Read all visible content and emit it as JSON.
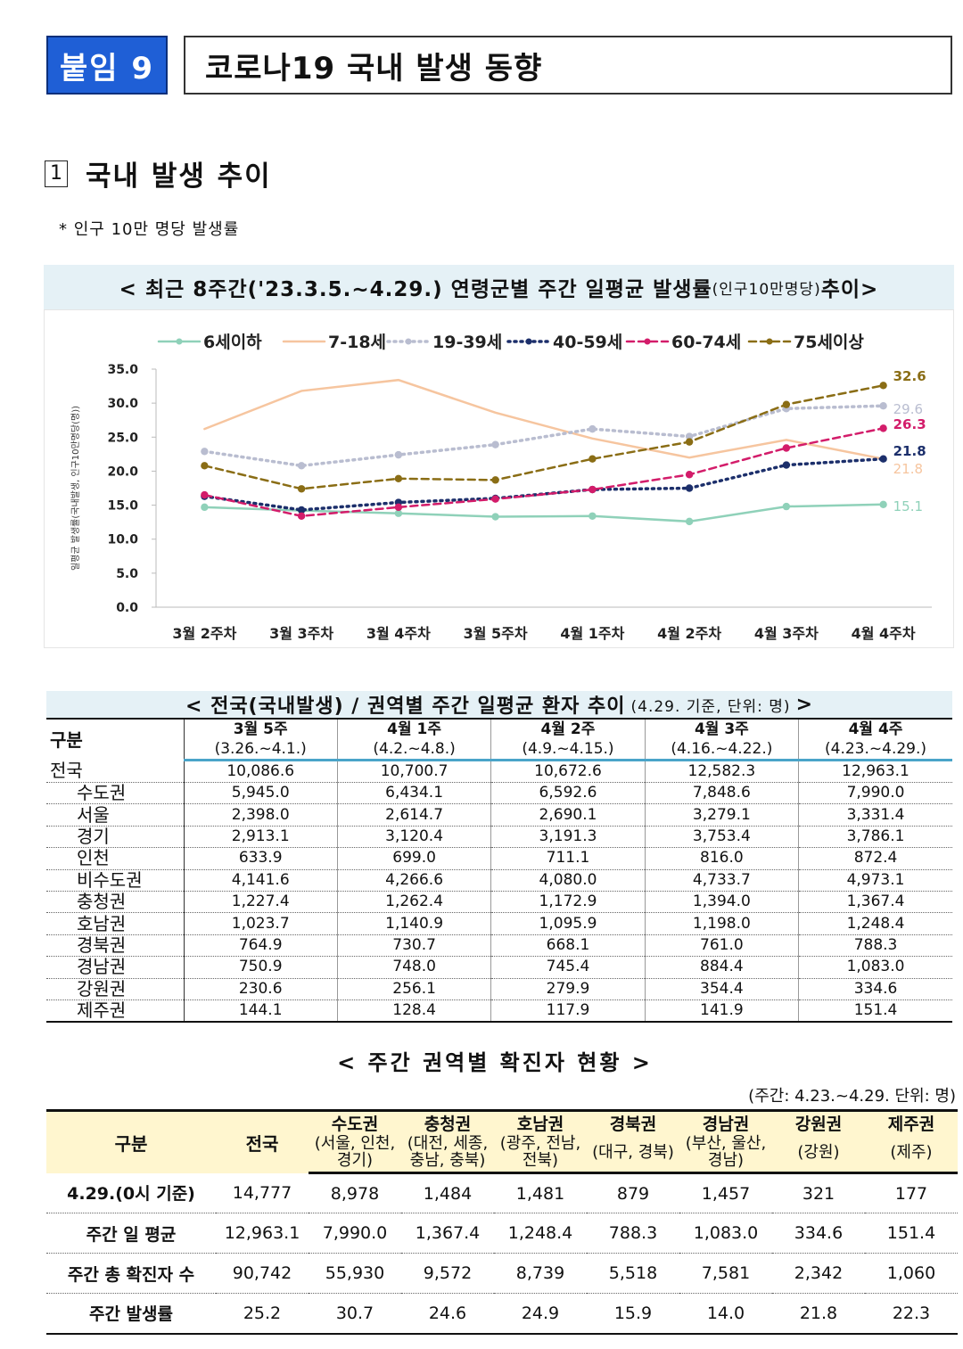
{
  "header": {
    "badge": "붙임 9",
    "title": "코로나19 국내 발생 동향"
  },
  "section": {
    "number": "1",
    "title": "국내 발생 추이",
    "note": "* 인구 10만 명당 발생률"
  },
  "chart_banner": {
    "main": "< 최근 8주간('23.3.5.~4.29.) 연령군별 주간 일평균 발생률",
    "small": "(인구10만명당)",
    "end": " 추이>"
  },
  "chart_data": {
    "type": "line",
    "title": "< 최근 8주간('23.3.5.~4.29.) 연령군별 주간 일평균 발생률(인구10만명당) 추이>",
    "ylabel": "일평균 발생률(국내발생, 인구10만명당(명))",
    "xlabel": "",
    "ylim": [
      0,
      35
    ],
    "y_ticks": [
      "0.0",
      "5.0",
      "10.0",
      "15.0",
      "20.0",
      "25.0",
      "30.0",
      "35.0"
    ],
    "categories": [
      "3월 2주차",
      "3월 3주차",
      "3월 4주차",
      "3월 5주차",
      "4월 1주차",
      "4월 2주차",
      "4월 3주차",
      "4월 4주차"
    ],
    "legend_position": "top",
    "series": [
      {
        "name": "6세이하",
        "color": "#8fd1b9",
        "style": "solid",
        "marker": "circle",
        "values": [
          14.7,
          14.2,
          13.8,
          13.3,
          13.4,
          12.6,
          14.8,
          15.1
        ],
        "end_label": "15.1"
      },
      {
        "name": "7-18세",
        "color": "#f6c59f",
        "style": "solid",
        "marker": "none",
        "values": [
          26.2,
          31.8,
          33.4,
          28.6,
          24.8,
          22.0,
          24.6,
          21.8
        ],
        "end_label": "21.8"
      },
      {
        "name": "19-39세",
        "color": "#b9bdd0",
        "style": "dotted",
        "marker": "circle",
        "values": [
          22.9,
          20.8,
          22.4,
          23.9,
          26.2,
          25.1,
          29.2,
          29.6
        ],
        "end_label": "29.6"
      },
      {
        "name": "40-59세",
        "color": "#1c2f6b",
        "style": "dotted",
        "marker": "circle",
        "values": [
          16.3,
          14.3,
          15.4,
          16.0,
          17.3,
          17.5,
          20.9,
          21.8
        ],
        "end_label": "21.8"
      },
      {
        "name": "60-74세",
        "color": "#d31c6a",
        "style": "dashed",
        "marker": "circle",
        "values": [
          16.5,
          13.4,
          14.7,
          15.9,
          17.3,
          19.5,
          23.4,
          26.3
        ],
        "end_label": "26.3"
      },
      {
        "name": "75세이상",
        "color": "#8a6d15",
        "style": "dashed",
        "marker": "circle",
        "values": [
          20.8,
          17.4,
          18.9,
          18.7,
          21.8,
          24.3,
          29.8,
          32.6
        ],
        "end_label": "32.6"
      }
    ]
  },
  "table1": {
    "title": "< 전국(국내발생) / 권역별 주간 일평균 환자 추이",
    "note": "(4.29. 기준, 단위: 명)",
    "title_end": ">",
    "corner": "구분",
    "periods": [
      {
        "week": "3월 5주",
        "range": "(3.26.~4.1.)"
      },
      {
        "week": "4월 1주",
        "range": "(4.2.~4.8.)"
      },
      {
        "week": "4월 2주",
        "range": "(4.9.~4.15.)"
      },
      {
        "week": "4월 3주",
        "range": "(4.16.~4.22.)"
      },
      {
        "week": "4월 4주",
        "range": "(4.23.~4.29.)"
      }
    ],
    "rows": [
      {
        "name": "전국",
        "indent": false,
        "values": [
          "10,086.6",
          "10,700.7",
          "10,672.6",
          "12,582.3",
          "12,963.1"
        ]
      },
      {
        "name": "수도권",
        "indent": true,
        "values": [
          "5,945.0",
          "6,434.1",
          "6,592.6",
          "7,848.6",
          "7,990.0"
        ]
      },
      {
        "name": "서울",
        "indent": true,
        "values": [
          "2,398.0",
          "2,614.7",
          "2,690.1",
          "3,279.1",
          "3,331.4"
        ]
      },
      {
        "name": "경기",
        "indent": true,
        "values": [
          "2,913.1",
          "3,120.4",
          "3,191.3",
          "3,753.4",
          "3,786.1"
        ]
      },
      {
        "name": "인천",
        "indent": true,
        "values": [
          "633.9",
          "699.0",
          "711.1",
          "816.0",
          "872.4"
        ]
      },
      {
        "name": "비수도권",
        "indent": true,
        "values": [
          "4,141.6",
          "4,266.6",
          "4,080.0",
          "4,733.7",
          "4,973.1"
        ]
      },
      {
        "name": "충청권",
        "indent": true,
        "values": [
          "1,227.4",
          "1,262.4",
          "1,172.9",
          "1,394.0",
          "1,367.4"
        ]
      },
      {
        "name": "호남권",
        "indent": true,
        "values": [
          "1,023.7",
          "1,140.9",
          "1,095.9",
          "1,198.0",
          "1,248.4"
        ]
      },
      {
        "name": "경북권",
        "indent": true,
        "values": [
          "764.9",
          "730.7",
          "668.1",
          "761.0",
          "788.3"
        ]
      },
      {
        "name": "경남권",
        "indent": true,
        "values": [
          "750.9",
          "748.0",
          "745.4",
          "884.4",
          "1,083.0"
        ]
      },
      {
        "name": "강원권",
        "indent": true,
        "values": [
          "230.6",
          "256.1",
          "279.9",
          "354.4",
          "334.6"
        ]
      },
      {
        "name": "제주권",
        "indent": true,
        "values": [
          "144.1",
          "128.4",
          "117.9",
          "141.9",
          "151.4"
        ]
      }
    ]
  },
  "table2": {
    "title": "< 주간 권역별 확진자 현황 >",
    "unit": "(주간: 4.23.~4.29. 단위: 명)",
    "corner": "구분",
    "national": "전국",
    "areas": [
      {
        "name": "수도권",
        "sub": "(서울, 인천, 경기)"
      },
      {
        "name": "충청권",
        "sub": "(대전, 세종, 충남, 충북)"
      },
      {
        "name": "호남권",
        "sub": "(광주, 전남, 전북)"
      },
      {
        "name": "경북권",
        "sub": "(대구, 경북)"
      },
      {
        "name": "경남권",
        "sub": "(부산, 울산, 경남)"
      },
      {
        "name": "강원권",
        "sub": "(강원)"
      },
      {
        "name": "제주권",
        "sub": "(제주)"
      }
    ],
    "rows": [
      {
        "label": "4.29.(0시 기준)",
        "values": [
          "14,777",
          "8,978",
          "1,484",
          "1,481",
          "879",
          "1,457",
          "321",
          "177"
        ]
      },
      {
        "label": "주간 일 평균",
        "values": [
          "12,963.1",
          "7,990.0",
          "1,367.4",
          "1,248.4",
          "788.3",
          "1,083.0",
          "334.6",
          "151.4"
        ]
      },
      {
        "label": "주간 총 확진자 수",
        "values": [
          "90,742",
          "55,930",
          "9,572",
          "8,739",
          "5,518",
          "7,581",
          "2,342",
          "1,060"
        ]
      },
      {
        "label": "주간 발생률",
        "values": [
          "25.2",
          "30.7",
          "24.6",
          "24.9",
          "15.9",
          "14.0",
          "21.8",
          "22.3"
        ]
      }
    ]
  }
}
